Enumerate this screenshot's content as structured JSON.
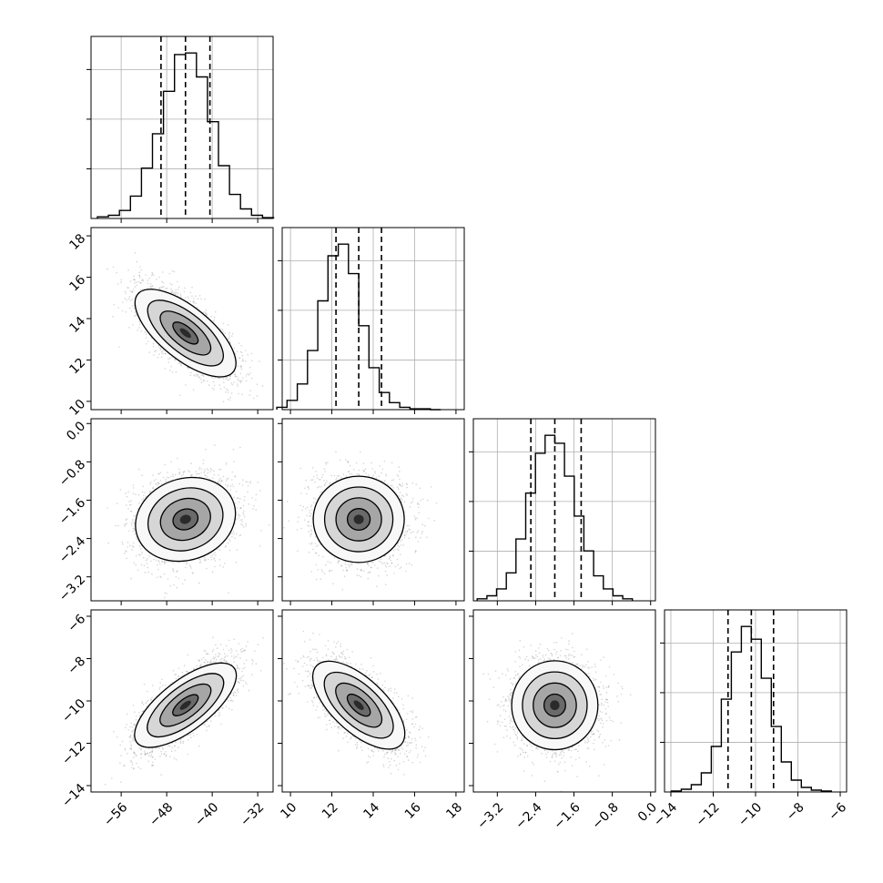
{
  "colors": {
    "hist": "#000000",
    "grid": "#b0b0b0",
    "contour": "#000000",
    "points": "#7f7f7f"
  },
  "chart_data": {
    "type": "corner",
    "grid": true,
    "quantiles": [
      0.16,
      0.5,
      0.84
    ],
    "parameters": [
      {
        "ticks": [
          -56,
          -48,
          -40,
          -32
        ],
        "tick_labels": [
          "−56",
          "−48",
          "−40",
          "−32"
        ],
        "range": [
          -61.3,
          -29.3
        ],
        "mean": -44.7,
        "std": 4.3,
        "quantile_values": [
          -49.0,
          -44.7,
          -40.4
        ]
      },
      {
        "ticks": [
          10,
          12,
          14,
          16,
          18
        ],
        "tick_labels": [
          "10",
          "12",
          "14",
          "16",
          "18"
        ],
        "range": [
          9.6,
          18.4
        ],
        "mean": 13.3,
        "std": 1.1,
        "quantile_values": [
          12.2,
          13.3,
          14.4
        ]
      },
      {
        "ticks": [
          -3.2,
          -2.4,
          -1.6,
          -0.8,
          0.0
        ],
        "tick_labels": [
          "−3.2",
          "−2.4",
          "−1.6",
          "−0.8",
          "0.0"
        ],
        "range": [
          -3.7,
          0.1
        ],
        "mean": -2.0,
        "std": 0.45,
        "quantile_values": [
          -2.5,
          -2.0,
          -1.45
        ]
      },
      {
        "ticks": [
          -14,
          -12,
          -10,
          -8,
          -6
        ],
        "tick_labels": [
          "−14",
          "−12",
          "−10",
          "−8",
          "−6"
        ],
        "range": [
          -14.3,
          -5.7
        ],
        "mean": -10.2,
        "std": 1.05,
        "quantile_values": [
          -11.3,
          -10.2,
          -9.15
        ]
      }
    ],
    "correlations": [
      {
        "i": 1,
        "j": 0,
        "rho": -0.7
      },
      {
        "i": 2,
        "j": 0,
        "rho": 0.2
      },
      {
        "i": 2,
        "j": 1,
        "rho": 0.0
      },
      {
        "i": 3,
        "j": 0,
        "rho": 0.72
      },
      {
        "i": 3,
        "j": 1,
        "rho": -0.65
      },
      {
        "i": 3,
        "j": 2,
        "rho": 0.0
      }
    ],
    "hist_counts": [
      [
        2,
        4,
        10,
        28,
        63,
        106,
        159,
        205,
        207,
        177,
        121,
        66,
        30,
        12,
        4,
        1
      ],
      [
        3,
        12,
        33,
        76,
        140,
        198,
        213,
        175,
        108,
        54,
        22,
        9,
        3,
        1,
        1,
        0
      ],
      [
        2,
        5,
        12,
        28,
        62,
        108,
        148,
        166,
        158,
        125,
        85,
        50,
        25,
        12,
        5,
        2
      ],
      [
        1,
        3,
        8,
        21,
        50,
        102,
        154,
        182,
        168,
        125,
        72,
        33,
        13,
        5,
        2,
        1
      ]
    ]
  }
}
